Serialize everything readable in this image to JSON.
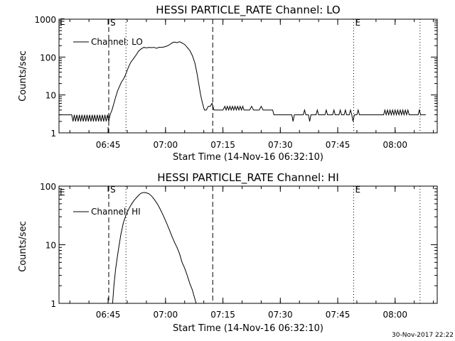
{
  "chart_data": [
    {
      "type": "line",
      "title": "HESSI PARTICLE_RATE Channel: LO",
      "xlabel": "Start Time (14-Nov-16 06:32:10)",
      "ylabel": "Counts/sec",
      "yscale": "log",
      "ylim": [
        1,
        1000
      ],
      "xlim": [
        "06:32:10",
        "08:11:00"
      ],
      "yticks": [
        "1",
        "10",
        "100",
        "1000"
      ],
      "xticks": [
        "06:45",
        "07:00",
        "07:15",
        "07:30",
        "07:45",
        "08:00"
      ],
      "legend": {
        "placement": "top-left",
        "entries": [
          "Channel: LO"
        ]
      },
      "markers": [
        {
          "label": "S",
          "time": "06:45:10",
          "style": "dashed"
        },
        {
          "label": "",
          "time": "06:49:40",
          "style": "dotted"
        },
        {
          "label": "",
          "time": "07:12:20",
          "style": "dashed"
        },
        {
          "label": "E",
          "time": "07:49:10",
          "style": "dotted"
        },
        {
          "label": "",
          "time": "08:06:30",
          "style": "dotted"
        }
      ],
      "edge_label": "E",
      "series": [
        {
          "name": "Channel: LO",
          "points": [
            [
              "06:32:10",
              3
            ],
            [
              "06:35:30",
              3
            ],
            [
              "06:35:50",
              2
            ],
            [
              "06:36:10",
              3
            ],
            [
              "06:36:30",
              2
            ],
            [
              "06:36:50",
              3
            ],
            [
              "06:37:10",
              2
            ],
            [
              "06:37:30",
              3
            ],
            [
              "06:37:50",
              2
            ],
            [
              "06:38:10",
              3
            ],
            [
              "06:38:30",
              2
            ],
            [
              "06:38:50",
              3
            ],
            [
              "06:39:10",
              2
            ],
            [
              "06:39:30",
              3
            ],
            [
              "06:39:50",
              2
            ],
            [
              "06:40:10",
              3
            ],
            [
              "06:40:30",
              2
            ],
            [
              "06:40:50",
              3
            ],
            [
              "06:41:10",
              2
            ],
            [
              "06:41:30",
              3
            ],
            [
              "06:41:50",
              2
            ],
            [
              "06:42:10",
              3
            ],
            [
              "06:42:30",
              2
            ],
            [
              "06:42:50",
              3
            ],
            [
              "06:43:10",
              2
            ],
            [
              "06:43:30",
              3
            ],
            [
              "06:43:50",
              2
            ],
            [
              "06:44:10",
              3
            ],
            [
              "06:44:30",
              2
            ],
            [
              "06:44:50",
              3
            ],
            [
              "06:45:10",
              2
            ],
            [
              "06:45:30",
              3
            ],
            [
              "06:46:00",
              4
            ],
            [
              "06:46:30",
              6
            ],
            [
              "06:47:00",
              9
            ],
            [
              "06:47:30",
              13
            ],
            [
              "06:48:00",
              17
            ],
            [
              "06:48:30",
              22
            ],
            [
              "06:49:00",
              26
            ],
            [
              "06:49:30",
              33
            ],
            [
              "06:50:00",
              45
            ],
            [
              "06:50:30",
              60
            ],
            [
              "06:51:00",
              75
            ],
            [
              "06:51:40",
              92
            ],
            [
              "06:52:20",
              115
            ],
            [
              "06:53:00",
              145
            ],
            [
              "06:53:40",
              165
            ],
            [
              "06:54:20",
              180
            ],
            [
              "06:55:00",
              175
            ],
            [
              "06:55:40",
              180
            ],
            [
              "06:56:20",
              178
            ],
            [
              "06:57:00",
              180
            ],
            [
              "06:57:40",
              170
            ],
            [
              "06:58:20",
              182
            ],
            [
              "06:59:00",
              180
            ],
            [
              "06:59:40",
              186
            ],
            [
              "07:00:20",
              195
            ],
            [
              "07:01:00",
              210
            ],
            [
              "07:01:40",
              235
            ],
            [
              "07:02:20",
              250
            ],
            [
              "07:03:00",
              240
            ],
            [
              "07:03:40",
              255
            ],
            [
              "07:04:20",
              235
            ],
            [
              "07:05:00",
              215
            ],
            [
              "07:05:40",
              180
            ],
            [
              "07:06:20",
              150
            ],
            [
              "07:07:00",
              110
            ],
            [
              "07:07:40",
              70
            ],
            [
              "07:08:10",
              40
            ],
            [
              "07:08:40",
              20
            ],
            [
              "07:09:10",
              10
            ],
            [
              "07:09:40",
              6
            ],
            [
              "07:10:10",
              4
            ],
            [
              "07:10:40",
              4
            ],
            [
              "07:11:10",
              5
            ],
            [
              "07:11:40",
              5
            ],
            [
              "07:12:10",
              6
            ],
            [
              "07:12:40",
              4
            ],
            [
              "07:13:00",
              4
            ],
            [
              "07:14:00",
              4
            ],
            [
              "07:15:00",
              4
            ],
            [
              "07:15:30",
              5
            ],
            [
              "07:15:50",
              4
            ],
            [
              "07:16:10",
              5
            ],
            [
              "07:16:30",
              4
            ],
            [
              "07:16:50",
              5
            ],
            [
              "07:17:10",
              4
            ],
            [
              "07:17:30",
              5
            ],
            [
              "07:17:50",
              4
            ],
            [
              "07:18:10",
              5
            ],
            [
              "07:18:30",
              4
            ],
            [
              "07:18:50",
              5
            ],
            [
              "07:19:10",
              4
            ],
            [
              "07:19:30",
              5
            ],
            [
              "07:19:50",
              4
            ],
            [
              "07:20:10",
              5
            ],
            [
              "07:20:30",
              4
            ],
            [
              "07:21:00",
              4
            ],
            [
              "07:22:00",
              4
            ],
            [
              "07:22:30",
              5
            ],
            [
              "07:23:00",
              4
            ],
            [
              "07:24:30",
              4
            ],
            [
              "07:25:00",
              5
            ],
            [
              "07:25:30",
              4
            ],
            [
              "07:27:00",
              4
            ],
            [
              "07:28:00",
              4
            ],
            [
              "07:28:20",
              3
            ],
            [
              "07:29:00",
              3
            ],
            [
              "07:30:00",
              3
            ],
            [
              "07:32:00",
              3
            ],
            [
              "07:33:00",
              3
            ],
            [
              "07:33:20",
              2
            ],
            [
              "07:33:40",
              3
            ],
            [
              "07:35:00",
              3
            ],
            [
              "07:36:00",
              3
            ],
            [
              "07:36:20",
              4
            ],
            [
              "07:36:40",
              3
            ],
            [
              "07:37:20",
              3
            ],
            [
              "07:37:40",
              2
            ],
            [
              "07:38:00",
              3
            ],
            [
              "07:39:20",
              3
            ],
            [
              "07:39:40",
              4
            ],
            [
              "07:40:00",
              3
            ],
            [
              "07:41:40",
              3
            ],
            [
              "07:42:00",
              4
            ],
            [
              "07:42:20",
              3
            ],
            [
              "07:43:40",
              3
            ],
            [
              "07:44:00",
              4
            ],
            [
              "07:44:20",
              3
            ],
            [
              "07:45:20",
              3
            ],
            [
              "07:45:40",
              4
            ],
            [
              "07:46:00",
              3
            ],
            [
              "07:46:40",
              3
            ],
            [
              "07:47:00",
              4
            ],
            [
              "07:47:20",
              3
            ],
            [
              "07:48:00",
              3
            ],
            [
              "07:48:20",
              4
            ],
            [
              "07:48:40",
              3
            ],
            [
              "07:49:00",
              2
            ],
            [
              "07:49:20",
              3
            ],
            [
              "07:50:00",
              3
            ],
            [
              "07:50:20",
              4
            ],
            [
              "07:50:40",
              3
            ],
            [
              "07:52:00",
              3
            ],
            [
              "07:55:00",
              3
            ],
            [
              "07:57:00",
              3
            ],
            [
              "07:57:20",
              4
            ],
            [
              "07:57:40",
              3
            ],
            [
              "07:58:00",
              4
            ],
            [
              "07:58:20",
              3
            ],
            [
              "07:58:40",
              4
            ],
            [
              "07:59:00",
              3
            ],
            [
              "07:59:20",
              4
            ],
            [
              "07:59:40",
              3
            ],
            [
              "08:00:00",
              4
            ],
            [
              "08:00:20",
              3
            ],
            [
              "08:00:40",
              4
            ],
            [
              "08:01:00",
              3
            ],
            [
              "08:01:20",
              4
            ],
            [
              "08:01:40",
              3
            ],
            [
              "08:02:00",
              4
            ],
            [
              "08:02:20",
              3
            ],
            [
              "08:02:40",
              4
            ],
            [
              "08:03:00",
              3
            ],
            [
              "08:03:20",
              4
            ],
            [
              "08:03:40",
              3
            ],
            [
              "08:05:00",
              3
            ],
            [
              "08:06:00",
              3
            ],
            [
              "08:06:20",
              4
            ],
            [
              "08:06:40",
              3
            ],
            [
              "08:08:00",
              3
            ]
          ]
        }
      ]
    },
    {
      "type": "line",
      "title": "HESSI PARTICLE_RATE Channel: HI",
      "xlabel": "Start Time (14-Nov-16 06:32:10)",
      "ylabel": "Counts/sec",
      "yscale": "log",
      "ylim": [
        1,
        100
      ],
      "xlim": [
        "06:32:10",
        "08:11:00"
      ],
      "yticks": [
        "1",
        "10",
        "100"
      ],
      "xticks": [
        "06:45",
        "07:00",
        "07:15",
        "07:30",
        "07:45",
        "08:00"
      ],
      "legend": {
        "placement": "top-left",
        "entries": [
          "Channel: HI"
        ]
      },
      "markers": [
        {
          "label": "S",
          "time": "06:45:10",
          "style": "dashed"
        },
        {
          "label": "",
          "time": "06:49:40",
          "style": "dotted"
        },
        {
          "label": "",
          "time": "07:12:20",
          "style": "dashed"
        },
        {
          "label": "E",
          "time": "07:49:10",
          "style": "dotted"
        },
        {
          "label": "",
          "time": "08:06:30",
          "style": "dotted"
        }
      ],
      "edge_label": "E",
      "series": [
        {
          "name": "Channel: HI",
          "points": [
            [
              "06:46:10",
              1
            ],
            [
              "06:46:30",
              2
            ],
            [
              "06:47:00",
              4
            ],
            [
              "06:47:40",
              8
            ],
            [
              "06:48:20",
              15
            ],
            [
              "06:49:00",
              24
            ],
            [
              "06:49:40",
              32
            ],
            [
              "06:50:20",
              40
            ],
            [
              "06:51:00",
              48
            ],
            [
              "06:51:40",
              56
            ],
            [
              "06:52:20",
              63
            ],
            [
              "06:53:00",
              70
            ],
            [
              "06:53:40",
              76
            ],
            [
              "06:54:20",
              78
            ],
            [
              "06:55:00",
              77
            ],
            [
              "06:55:40",
              74
            ],
            [
              "06:56:20",
              68
            ],
            [
              "06:57:00",
              60
            ],
            [
              "06:57:40",
              52
            ],
            [
              "06:58:20",
              44
            ],
            [
              "06:59:00",
              36
            ],
            [
              "06:59:40",
              29
            ],
            [
              "07:00:20",
              23
            ],
            [
              "07:01:00",
              18
            ],
            [
              "07:01:40",
              14
            ],
            [
              "07:02:20",
              11
            ],
            [
              "07:03:00",
              9
            ],
            [
              "07:03:40",
              7
            ],
            [
              "07:04:20",
              5
            ],
            [
              "07:05:00",
              4
            ],
            [
              "07:05:40",
              3
            ],
            [
              "07:06:20",
              2.2
            ],
            [
              "07:07:00",
              1.7
            ],
            [
              "07:07:30",
              1.3
            ],
            [
              "07:08:00",
              1
            ]
          ]
        }
      ]
    }
  ],
  "footer": {
    "timestamp": "30-Nov-2017 22:22"
  }
}
